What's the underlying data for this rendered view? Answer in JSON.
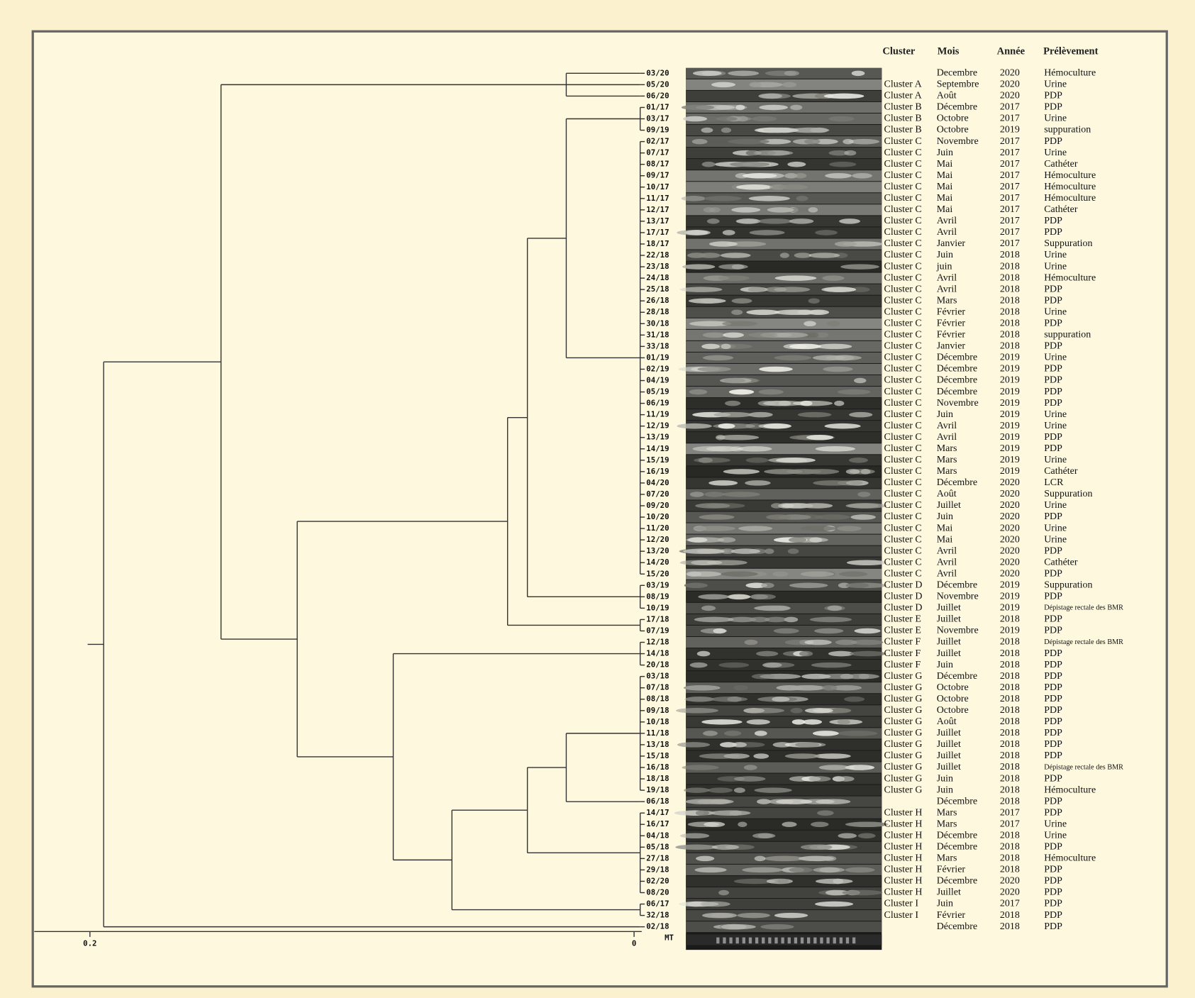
{
  "header": {
    "cluster": "Cluster",
    "mois": "Mois",
    "annee": "Année",
    "prelevement": "Prélèvement"
  },
  "samples": [
    {
      "id": "03/20",
      "mois": "Decembre",
      "annee": "2020",
      "prelevement": "Hémoculture"
    },
    {
      "id": "05/20",
      "cluster": "Cluster A",
      "mois": "Septembre",
      "annee": "2020",
      "prelevement": "Urine"
    },
    {
      "id": "06/20",
      "cluster": "Cluster A",
      "mois": "Août",
      "annee": "2020",
      "prelevement": "PDP"
    },
    {
      "id": "01/17",
      "cluster": "Cluster B",
      "mois": "Décembre",
      "annee": "2017",
      "prelevement": "PDP"
    },
    {
      "id": "03/17",
      "cluster": "Cluster B",
      "mois": "Octobre",
      "annee": "2017",
      "prelevement": "Urine"
    },
    {
      "id": "09/19",
      "cluster": "Cluster B",
      "mois": "Octobre",
      "annee": "2019",
      "prelevement": "suppuration"
    },
    {
      "id": "02/17",
      "cluster": "Cluster C",
      "mois": "Novembre",
      "annee": "2017",
      "prelevement": "PDP"
    },
    {
      "id": "07/17",
      "cluster": "Cluster C",
      "mois": "Juin",
      "annee": "2017",
      "prelevement": "Urine"
    },
    {
      "id": "08/17",
      "cluster": "Cluster C",
      "mois": "Mai",
      "annee": "2017",
      "prelevement": "Cathéter"
    },
    {
      "id": "09/17",
      "cluster": "Cluster C",
      "mois": "Mai",
      "annee": "2017",
      "prelevement": "Hémoculture"
    },
    {
      "id": "10/17",
      "cluster": "Cluster C",
      "mois": "Mai",
      "annee": "2017",
      "prelevement": "Hémoculture"
    },
    {
      "id": "11/17",
      "cluster": "Cluster C",
      "mois": "Mai",
      "annee": "2017",
      "prelevement": "Hémoculture"
    },
    {
      "id": "12/17",
      "cluster": "Cluster C",
      "mois": "Mai",
      "annee": "2017",
      "prelevement": "Cathéter"
    },
    {
      "id": "13/17",
      "cluster": "Cluster C",
      "mois": "Avril",
      "annee": "2017",
      "prelevement": "PDP"
    },
    {
      "id": "17/17",
      "cluster": "Cluster C",
      "mois": "Avril",
      "annee": "2017",
      "prelevement": "PDP"
    },
    {
      "id": "18/17",
      "cluster": "Cluster C",
      "mois": "Janvier",
      "annee": "2017",
      "prelevement": "Suppuration"
    },
    {
      "id": "22/18",
      "cluster": "Cluster C",
      "mois": "Juin",
      "annee": "2018",
      "prelevement": "Urine"
    },
    {
      "id": "23/18",
      "cluster": "Cluster C",
      "mois": "juin",
      "annee": "2018",
      "prelevement": "Urine"
    },
    {
      "id": "24/18",
      "cluster": "Cluster C",
      "mois": "Avril",
      "annee": "2018",
      "prelevement": "Hémoculture"
    },
    {
      "id": "25/18",
      "cluster": "Cluster C",
      "mois": "Avril",
      "annee": "2018",
      "prelevement": "PDP"
    },
    {
      "id": "26/18",
      "cluster": "Cluster C",
      "mois": "Mars",
      "annee": "2018",
      "prelevement": "PDP"
    },
    {
      "id": "28/18",
      "cluster": "Cluster C",
      "mois": "Février",
      "annee": "2018",
      "prelevement": "Urine"
    },
    {
      "id": "30/18",
      "cluster": "Cluster C",
      "mois": "Février",
      "annee": "2018",
      "prelevement": "PDP"
    },
    {
      "id": "31/18",
      "cluster": "Cluster C",
      "mois": "Février",
      "annee": "2018",
      "prelevement": "suppuration"
    },
    {
      "id": "33/18",
      "cluster": "Cluster C",
      "mois": "Janvier",
      "annee": "2018",
      "prelevement": "PDP"
    },
    {
      "id": "01/19",
      "cluster": "Cluster C",
      "mois": "Décembre",
      "annee": "2019",
      "prelevement": "Urine"
    },
    {
      "id": "02/19",
      "cluster": "Cluster C",
      "mois": "Décembre",
      "annee": "2019",
      "prelevement": "PDP"
    },
    {
      "id": "04/19",
      "cluster": "Cluster C",
      "mois": "Décembre",
      "annee": "2019",
      "prelevement": "PDP"
    },
    {
      "id": "05/19",
      "cluster": "Cluster C",
      "mois": "Décembre",
      "annee": "2019",
      "prelevement": "PDP"
    },
    {
      "id": "06/19",
      "cluster": "Cluster C",
      "mois": "Novembre",
      "annee": "2019",
      "prelevement": "PDP"
    },
    {
      "id": "11/19",
      "cluster": "Cluster C",
      "mois": "Juin",
      "annee": "2019",
      "prelevement": "Urine"
    },
    {
      "id": "12/19",
      "cluster": "Cluster C",
      "mois": "Avril",
      "annee": "2019",
      "prelevement": "Urine"
    },
    {
      "id": "13/19",
      "cluster": "Cluster C",
      "mois": "Avril",
      "annee": "2019",
      "prelevement": "PDP"
    },
    {
      "id": "14/19",
      "cluster": "Cluster C",
      "mois": "Mars",
      "annee": "2019",
      "prelevement": "PDP"
    },
    {
      "id": "15/19",
      "cluster": "Cluster C",
      "mois": "Mars",
      "annee": "2019",
      "prelevement": "Urine"
    },
    {
      "id": "16/19",
      "cluster": "Cluster C",
      "mois": "Mars",
      "annee": "2019",
      "prelevement": "Cathéter"
    },
    {
      "id": "04/20",
      "cluster": "Cluster C",
      "mois": "Décembre",
      "annee": "2020",
      "prelevement": "LCR"
    },
    {
      "id": "07/20",
      "cluster": "Cluster C",
      "mois": "Août",
      "annee": "2020",
      "prelevement": "Suppuration"
    },
    {
      "id": "09/20",
      "cluster": "Cluster C",
      "mois": "Juillet",
      "annee": "2020",
      "prelevement": "Urine"
    },
    {
      "id": "10/20",
      "cluster": "Cluster C",
      "mois": "Juin",
      "annee": "2020",
      "prelevement": "PDP"
    },
    {
      "id": "11/20",
      "cluster": "Cluster C",
      "mois": "Mai",
      "annee": "2020",
      "prelevement": "Urine"
    },
    {
      "id": "12/20",
      "cluster": "Cluster C",
      "mois": "Mai",
      "annee": "2020",
      "prelevement": "Urine"
    },
    {
      "id": "13/20",
      "cluster": "Cluster C",
      "mois": "Avril",
      "annee": "2020",
      "prelevement": "PDP"
    },
    {
      "id": "14/20",
      "cluster": "Cluster C",
      "mois": "Avril",
      "annee": "2020",
      "prelevement": "Cathéter"
    },
    {
      "id": "15/20",
      "cluster": "Cluster C",
      "mois": "Avril",
      "annee": "2020",
      "prelevement": "PDP"
    },
    {
      "id": "03/19",
      "cluster": "Cluster D",
      "mois": "Décembre",
      "annee": "2019",
      "prelevement": "Suppuration"
    },
    {
      "id": "08/19",
      "cluster": "Cluster D",
      "mois": "Novembre",
      "annee": "2019",
      "prelevement": "PDP"
    },
    {
      "id": "10/19",
      "cluster": "Cluster D",
      "mois": "Juillet",
      "annee": "2019",
      "prelevement": "Dépistage rectale des BMR"
    },
    {
      "id": "17/18",
      "cluster": "Cluster E",
      "mois": "Juillet",
      "annee": "2018",
      "prelevement": "PDP"
    },
    {
      "id": "07/19",
      "cluster": "Cluster E",
      "mois": "Novembre",
      "annee": "2019",
      "prelevement": "PDP"
    },
    {
      "id": "12/18",
      "cluster": "Cluster F",
      "mois": "Juillet",
      "annee": "2018",
      "prelevement": "Dépistage rectale des BMR"
    },
    {
      "id": "14/18",
      "cluster": "Cluster F",
      "mois": "Juillet",
      "annee": "2018",
      "prelevement": "PDP"
    },
    {
      "id": "20/18",
      "cluster": "Cluster F",
      "mois": "Juin",
      "annee": "2018",
      "prelevement": "PDP"
    },
    {
      "id": "03/18",
      "cluster": "Cluster G",
      "mois": "Décembre",
      "annee": "2018",
      "prelevement": "PDP"
    },
    {
      "id": "07/18",
      "cluster": "Cluster G",
      "mois": "Octobre",
      "annee": "2018",
      "prelevement": "PDP"
    },
    {
      "id": "08/18",
      "cluster": "Cluster G",
      "mois": "Octobre",
      "annee": "2018",
      "prelevement": "PDP"
    },
    {
      "id": "09/18",
      "cluster": "Cluster G",
      "mois": "Octobre",
      "annee": "2018",
      "prelevement": "PDP"
    },
    {
      "id": "10/18",
      "cluster": "Cluster G",
      "mois": "Août",
      "annee": "2018",
      "prelevement": "PDP"
    },
    {
      "id": "11/18",
      "cluster": "Cluster G",
      "mois": "Juillet",
      "annee": "2018",
      "prelevement": "PDP"
    },
    {
      "id": "13/18",
      "cluster": "Cluster G",
      "mois": "Juillet",
      "annee": "2018",
      "prelevement": "PDP"
    },
    {
      "id": "15/18",
      "cluster": "Cluster G",
      "mois": "Juillet",
      "annee": "2018",
      "prelevement": "PDP"
    },
    {
      "id": "16/18",
      "cluster": "Cluster G",
      "mois": "Juillet",
      "annee": "2018",
      "prelevement": "Dépistage rectale des BMR"
    },
    {
      "id": "18/18",
      "cluster": "Cluster G",
      "mois": "Juin",
      "annee": "2018",
      "prelevement": "PDP"
    },
    {
      "id": "19/18",
      "cluster": "Cluster G",
      "mois": "Juin",
      "annee": "2018",
      "prelevement": "Hémoculture"
    },
    {
      "id": "06/18",
      "mois": "Décembre",
      "annee": "2018",
      "prelevement": "PDP"
    },
    {
      "id": "14/17",
      "cluster": "Cluster H",
      "mois": "Mars",
      "annee": "2017",
      "prelevement": "PDP"
    },
    {
      "id": "16/17",
      "cluster": "Cluster H",
      "mois": "Mars",
      "annee": "2017",
      "prelevement": "Urine"
    },
    {
      "id": "04/18",
      "cluster": "Cluster H",
      "mois": "Décembre",
      "annee": "2018",
      "prelevement": "Urine"
    },
    {
      "id": "05/18",
      "cluster": "Cluster H",
      "mois": "Décembre",
      "annee": "2018",
      "prelevement": "PDP"
    },
    {
      "id": "27/18",
      "cluster": "Cluster H",
      "mois": "Mars",
      "annee": "2018",
      "prelevement": "Hémoculture"
    },
    {
      "id": "29/18",
      "cluster": "Cluster H",
      "mois": "Février",
      "annee": "2018",
      "prelevement": "PDP"
    },
    {
      "id": "02/20",
      "cluster": "Cluster H",
      "mois": "Décembre",
      "annee": "2020",
      "prelevement": "PDP"
    },
    {
      "id": "08/20",
      "cluster": "Cluster H",
      "mois": "Juillet",
      "annee": "2020",
      "prelevement": "PDP"
    },
    {
      "id": "06/17",
      "cluster": "Cluster I",
      "mois": "Juin",
      "annee": "2017",
      "prelevement": "PDP"
    },
    {
      "id": "32/18",
      "cluster": "Cluster I",
      "mois": "Février",
      "annee": "2018",
      "prelevement": "PDP"
    },
    {
      "id": "02/18",
      "mois": "Décembre",
      "annee": "2018",
      "prelevement": "PDP"
    }
  ],
  "marker": "MT",
  "scale": {
    "left": "0.2",
    "right": "0"
  }
}
